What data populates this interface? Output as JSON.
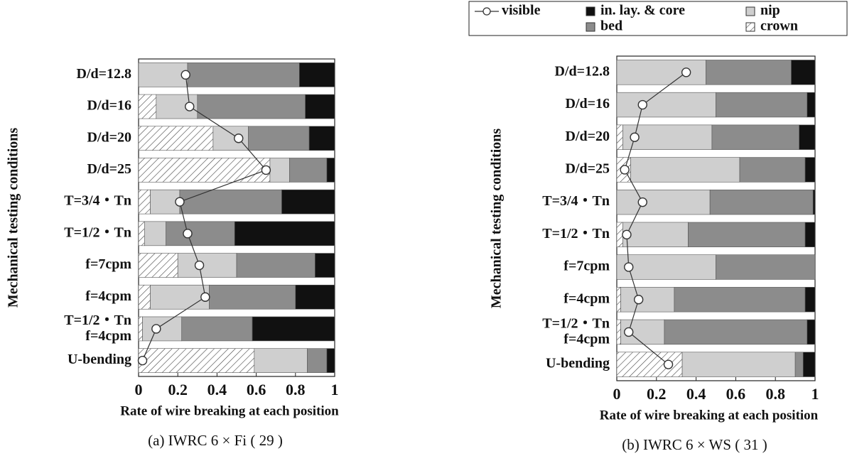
{
  "chart_data": [
    {
      "type": "bar",
      "orientation": "horizontal",
      "stacked": true,
      "caption": "(a) IWRC 6 × Fi ( 29 )",
      "xlabel": "Rate of wire breaking at each position",
      "ylabel": "Mechanical testing conditions",
      "categories": [
        "D/d=12.8",
        "D/d=16",
        "D/d=20",
        "D/d=25",
        "T=3/4・Tn",
        "T=1/2・Tn",
        "f=7cpm",
        "f=4cpm",
        "T=1/2・Tn\nf=4cpm",
        "U-bending"
      ],
      "series": [
        {
          "color": "#ffffff",
          "hatch": true,
          "values": [
            0,
            0.09,
            0.38,
            0.67,
            0.06,
            0.03,
            0.2,
            0.06,
            0.02,
            0.59
          ]
        },
        {
          "color": "#cfcfcf",
          "values": [
            0.25,
            0.21,
            0.18,
            0.1,
            0.15,
            0.11,
            0.3,
            0.3,
            0.2,
            0.27
          ]
        },
        {
          "color": "#8c8c8c",
          "values": [
            0.57,
            0.55,
            0.31,
            0.19,
            0.52,
            0.35,
            0.4,
            0.44,
            0.36,
            0.1
          ]
        },
        {
          "color": "#111111",
          "values": [
            0.18,
            0.15,
            0.13,
            0.04,
            0.27,
            0.51,
            0.1,
            0.2,
            0.42,
            0.04
          ]
        },
        {
          "type": "line",
          "color": "#333333",
          "values": [
            0.24,
            0.26,
            0.51,
            0.65,
            0.21,
            0.25,
            0.31,
            0.34,
            0.09,
            0.02
          ]
        }
      ],
      "xlim": [
        0,
        1
      ],
      "xticks": [
        0,
        0.2,
        0.4,
        0.6,
        0.8,
        1
      ]
    },
    {
      "type": "bar",
      "orientation": "horizontal",
      "stacked": true,
      "caption": "(b) IWRC 6 × WS ( 31 )",
      "xlabel": "Rate of wire breaking at each position",
      "ylabel": "Mechanical testing conditions",
      "legend": true,
      "categories": [
        "D/d=12.8",
        "D/d=16",
        "D/d=20",
        "D/d=25",
        "T=3/4・Tn",
        "T=1/2・Tn",
        "f=7cpm",
        "f=4cpm",
        "T=1/2・Tn\nf=4cpm",
        "U-bending"
      ],
      "series": [
        {
          "name": "crown",
          "color": "#ffffff",
          "hatch": true,
          "values": [
            0,
            0,
            0.03,
            0.07,
            0,
            0.03,
            0,
            0.02,
            0.02,
            0.33
          ]
        },
        {
          "name": "nip",
          "color": "#cfcfcf",
          "values": [
            0.45,
            0.5,
            0.45,
            0.55,
            0.47,
            0.33,
            0.5,
            0.27,
            0.22,
            0.57
          ]
        },
        {
          "name": "bed",
          "color": "#8c8c8c",
          "values": [
            0.43,
            0.46,
            0.44,
            0.33,
            0.52,
            0.59,
            0.5,
            0.66,
            0.72,
            0.04
          ]
        },
        {
          "name": "in. lay. & core",
          "color": "#111111",
          "values": [
            0.12,
            0.04,
            0.08,
            0.05,
            0.01,
            0.05,
            0,
            0.05,
            0.04,
            0.06
          ]
        },
        {
          "name": "visible",
          "type": "line",
          "color": "#333333",
          "values": [
            0.35,
            0.13,
            0.09,
            0.04,
            0.13,
            0.05,
            0.06,
            0.11,
            0.06,
            0.26
          ]
        }
      ],
      "xlim": [
        0,
        1
      ],
      "xticks": [
        0,
        0.2,
        0.4,
        0.6,
        0.8,
        1
      ]
    }
  ]
}
